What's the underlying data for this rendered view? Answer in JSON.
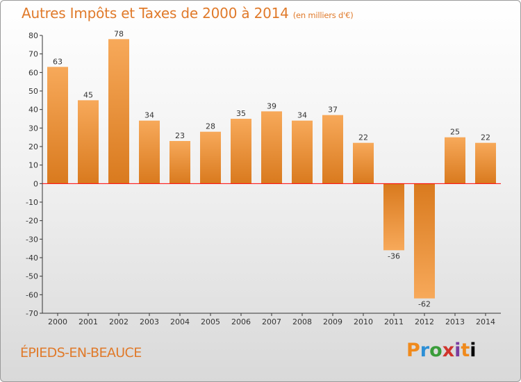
{
  "header": {
    "title": "Autres Impôts et Taxes de 2000 à 2014",
    "subtitle": "(en milliers d'€)"
  },
  "footer": {
    "commune": "ÉPIEDS-EN-BEAUCE",
    "logo_letters": [
      "P",
      "r",
      "o",
      "x",
      "i",
      "t",
      "i"
    ]
  },
  "colors": {
    "title": "#e07a2a",
    "bar_light": "#f7a95a",
    "bar_dark": "#d97a1e",
    "zero_line": "#ff0000",
    "axis": "#333333"
  },
  "chart_data": {
    "type": "bar",
    "categories": [
      "2000",
      "2001",
      "2002",
      "2003",
      "2004",
      "2005",
      "2006",
      "2007",
      "2008",
      "2009",
      "2010",
      "2011",
      "2012",
      "2013",
      "2014"
    ],
    "values": [
      63,
      45,
      78,
      34,
      23,
      28,
      35,
      39,
      34,
      37,
      22,
      -36,
      -62,
      25,
      22
    ],
    "title": "Autres Impôts et Taxes de 2000 à 2014",
    "subtitle": "(en milliers d'€)",
    "ylim": [
      -70,
      80
    ],
    "yticks": [
      80,
      70,
      60,
      50,
      40,
      30,
      20,
      10,
      0,
      -10,
      -20,
      -30,
      -40,
      -50,
      -60,
      -70
    ],
    "grid": false,
    "data_labels": true
  }
}
